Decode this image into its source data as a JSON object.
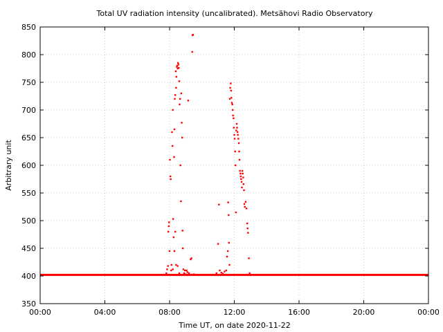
{
  "chart_data": {
    "type": "scatter",
    "title": "Total UV radiation intensity (uncalibrated). Metsähovi Radio Observatory",
    "xlabel": "Time UT, on date 2020-11-22",
    "ylabel": "Arbitrary unit",
    "x_unit": "hours UT",
    "xlim": [
      0,
      24
    ],
    "ylim": [
      350,
      850
    ],
    "x_ticks": [
      {
        "value": 0,
        "label": "00:00"
      },
      {
        "value": 4,
        "label": "04:00"
      },
      {
        "value": 8,
        "label": "08:00"
      },
      {
        "value": 12,
        "label": "12:00"
      },
      {
        "value": 16,
        "label": "16:00"
      },
      {
        "value": 20,
        "label": "20:00"
      },
      {
        "value": 24,
        "label": "00:00"
      }
    ],
    "y_ticks": [
      350,
      400,
      450,
      500,
      550,
      600,
      650,
      700,
      750,
      800,
      850
    ],
    "grid": true,
    "marker_color": "#ff0000",
    "baseline": {
      "y": 402,
      "x_start": 0,
      "x_end": 24,
      "note": "continuous band of points at ~402 outside daylight"
    },
    "series": [
      {
        "points": [
          [
            7.8,
            405
          ],
          [
            7.85,
            412
          ],
          [
            7.9,
            418
          ],
          [
            7.92,
            480
          ],
          [
            7.95,
            490
          ],
          [
            7.97,
            497
          ],
          [
            8.0,
            445
          ],
          [
            8.02,
            610
          ],
          [
            8.05,
            580
          ],
          [
            8.07,
            575
          ],
          [
            8.1,
            410
          ],
          [
            8.12,
            420
          ],
          [
            8.15,
            660
          ],
          [
            8.18,
            635
          ],
          [
            8.2,
            700
          ],
          [
            8.22,
            503
          ],
          [
            8.25,
            470
          ],
          [
            8.28,
            615
          ],
          [
            8.3,
            665
          ],
          [
            8.32,
            720
          ],
          [
            8.35,
            727
          ],
          [
            8.38,
            770
          ],
          [
            8.4,
            740
          ],
          [
            8.42,
            760
          ],
          [
            8.45,
            778
          ],
          [
            8.47,
            780
          ],
          [
            8.5,
            775
          ],
          [
            8.52,
            785
          ],
          [
            8.55,
            782
          ],
          [
            8.57,
            776
          ],
          [
            8.6,
            752
          ],
          [
            8.62,
            710
          ],
          [
            8.65,
            720
          ],
          [
            8.67,
            600
          ],
          [
            8.7,
            535
          ],
          [
            8.72,
            730
          ],
          [
            8.75,
            677
          ],
          [
            8.78,
            650
          ],
          [
            8.8,
            482
          ],
          [
            8.82,
            450
          ],
          [
            8.85,
            412
          ],
          [
            8.9,
            405
          ],
          [
            8.95,
            410
          ],
          [
            9.0,
            403
          ],
          [
            9.05,
            410
          ],
          [
            9.1,
            407
          ],
          [
            9.15,
            717
          ],
          [
            9.2,
            405
          ],
          [
            9.3,
            430
          ],
          [
            9.35,
            432
          ],
          [
            9.4,
            805
          ],
          [
            9.42,
            835
          ],
          [
            9.45,
            836
          ],
          [
            9.5,
            403
          ],
          [
            8.6,
            405
          ],
          [
            8.5,
            418
          ],
          [
            8.3,
            445
          ],
          [
            8.35,
            480
          ],
          [
            8.2,
            412
          ],
          [
            8.4,
            420
          ],
          [
            10.9,
            405
          ],
          [
            11.0,
            458
          ],
          [
            11.05,
            529
          ],
          [
            11.1,
            410
          ],
          [
            11.2,
            406
          ],
          [
            11.3,
            404
          ],
          [
            11.4,
            408
          ],
          [
            11.5,
            410
          ],
          [
            11.55,
            435
          ],
          [
            11.6,
            445
          ],
          [
            11.62,
            533
          ],
          [
            11.65,
            510
          ],
          [
            11.67,
            460
          ],
          [
            11.7,
            420
          ],
          [
            11.72,
            720
          ],
          [
            11.75,
            740
          ],
          [
            11.78,
            748
          ],
          [
            11.8,
            735
          ],
          [
            11.82,
            722
          ],
          [
            11.85,
            713
          ],
          [
            11.88,
            710
          ],
          [
            11.9,
            700
          ],
          [
            11.92,
            690
          ],
          [
            11.95,
            685
          ],
          [
            11.97,
            668
          ],
          [
            12.0,
            655
          ],
          [
            12.02,
            648
          ],
          [
            12.05,
            625
          ],
          [
            12.07,
            600
          ],
          [
            12.1,
            515
          ],
          [
            12.12,
            663
          ],
          [
            12.15,
            675
          ],
          [
            12.17,
            668
          ],
          [
            12.2,
            660
          ],
          [
            12.22,
            655
          ],
          [
            12.25,
            648
          ],
          [
            12.28,
            640
          ],
          [
            12.3,
            625
          ],
          [
            12.32,
            610
          ],
          [
            12.35,
            590
          ],
          [
            12.38,
            585
          ],
          [
            12.4,
            580
          ],
          [
            12.42,
            575
          ],
          [
            12.45,
            570
          ],
          [
            12.47,
            560
          ],
          [
            12.5,
            590
          ],
          [
            12.52,
            585
          ],
          [
            12.55,
            578
          ],
          [
            12.57,
            566
          ],
          [
            12.6,
            555
          ],
          [
            12.62,
            530
          ],
          [
            12.65,
            525
          ],
          [
            12.7,
            534
          ],
          [
            12.75,
            522
          ],
          [
            12.8,
            495
          ],
          [
            12.82,
            486
          ],
          [
            12.85,
            478
          ],
          [
            12.9,
            432
          ],
          [
            12.95,
            405
          ],
          [
            13.0,
            402
          ]
        ]
      }
    ]
  }
}
